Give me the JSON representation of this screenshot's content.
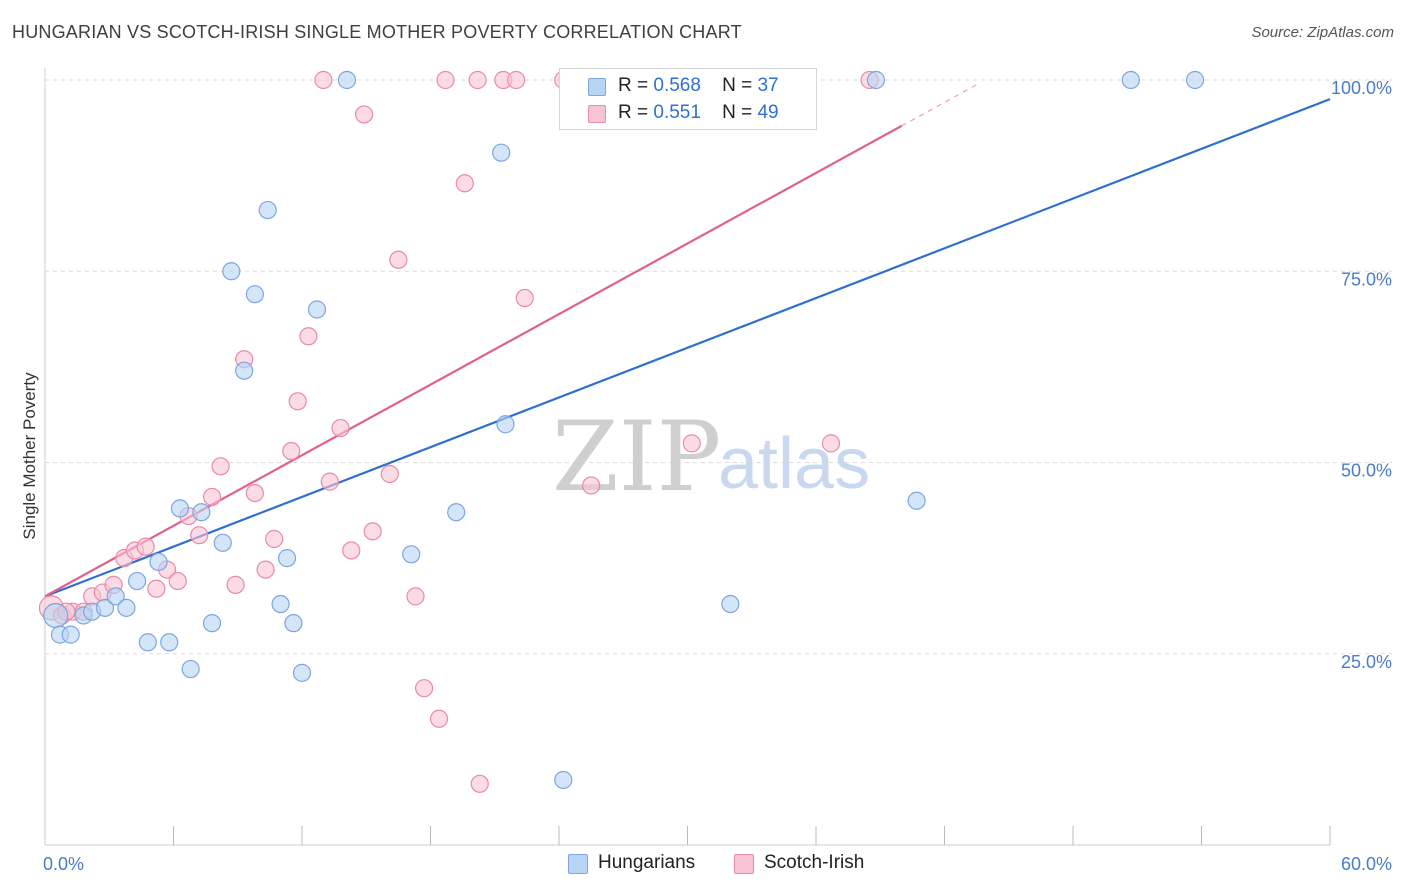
{
  "title": "HUNGARIAN VS SCOTCH-IRISH SINGLE MOTHER POVERTY CORRELATION CHART",
  "source": "Source: ZipAtlas.com",
  "watermark": {
    "zip": "ZIP",
    "atlas": "atlas"
  },
  "legend": {
    "rows": [
      {
        "r_label": "R =",
        "r_value": "0.568",
        "n_label": "N =",
        "n_value": "37"
      },
      {
        "r_label": "R =",
        "r_value": "0.551",
        "n_label": "N =",
        "n_value": "49"
      }
    ]
  },
  "bottom_legend": {
    "hungarians": "Hungarians",
    "scotch_irish": "Scotch-Irish"
  },
  "colors": {
    "blue_fill": "#b9d3f4",
    "blue_stroke": "#7aa6e0",
    "blue_line": "#2f6fcf",
    "pink_fill": "#f8c3d3",
    "pink_stroke": "#e98aa8",
    "pink_line": "#e0608a",
    "grid": "#dddddd",
    "tick_label": "#4a7bc8"
  },
  "chart_data": {
    "type": "scatter",
    "title": "HUNGARIAN VS SCOTCH-IRISH SINGLE MOTHER POVERTY CORRELATION CHART",
    "xlabel": "",
    "ylabel": "Single Mother Poverty",
    "xlim": [
      0,
      60
    ],
    "ylim": [
      0,
      100
    ],
    "x_tick_labels": [
      "0.0%",
      "60.0%"
    ],
    "y_ticks": [
      25,
      50,
      75,
      100
    ],
    "y_tick_labels": [
      "25.0%",
      "50.0%",
      "75.0%",
      "100.0%"
    ],
    "series": [
      {
        "name": "Hungarians",
        "R": 0.568,
        "N": 37,
        "trend": {
          "x": [
            0,
            60
          ],
          "y": [
            32.5,
            97.5
          ]
        },
        "points": [
          {
            "x": 0.5,
            "y": 30.0
          },
          {
            "x": 0.7,
            "y": 27.5
          },
          {
            "x": 1.2,
            "y": 27.5
          },
          {
            "x": 1.8,
            "y": 30.0
          },
          {
            "x": 2.2,
            "y": 30.5
          },
          {
            "x": 2.8,
            "y": 31.0
          },
          {
            "x": 3.3,
            "y": 32.5
          },
          {
            "x": 3.8,
            "y": 31.0
          },
          {
            "x": 4.3,
            "y": 34.5
          },
          {
            "x": 4.8,
            "y": 26.5
          },
          {
            "x": 5.3,
            "y": 37.0
          },
          {
            "x": 5.8,
            "y": 26.5
          },
          {
            "x": 6.3,
            "y": 44.0
          },
          {
            "x": 6.8,
            "y": 23.0
          },
          {
            "x": 7.3,
            "y": 43.5
          },
          {
            "x": 7.8,
            "y": 29.0
          },
          {
            "x": 8.3,
            "y": 39.5
          },
          {
            "x": 8.7,
            "y": 75.0
          },
          {
            "x": 9.3,
            "y": 62.0
          },
          {
            "x": 9.8,
            "y": 72.0
          },
          {
            "x": 10.4,
            "y": 83.0
          },
          {
            "x": 11.0,
            "y": 31.5
          },
          {
            "x": 11.3,
            "y": 37.5
          },
          {
            "x": 11.6,
            "y": 29.0
          },
          {
            "x": 12.0,
            "y": 22.5
          },
          {
            "x": 12.7,
            "y": 70.0
          },
          {
            "x": 14.1,
            "y": 100.0
          },
          {
            "x": 17.1,
            "y": 38.0
          },
          {
            "x": 19.2,
            "y": 43.5
          },
          {
            "x": 21.3,
            "y": 90.5
          },
          {
            "x": 21.5,
            "y": 55.0
          },
          {
            "x": 24.2,
            "y": 8.5
          },
          {
            "x": 32.0,
            "y": 31.5
          },
          {
            "x": 38.8,
            "y": 100.0
          },
          {
            "x": 40.7,
            "y": 45.0
          },
          {
            "x": 50.7,
            "y": 100.0
          },
          {
            "x": 53.7,
            "y": 100.0
          }
        ]
      },
      {
        "name": "Scotch-Irish",
        "R": 0.551,
        "N": 49,
        "trend": {
          "x": [
            0,
            40
          ],
          "y": [
            32.5,
            94.0
          ]
        },
        "points": [
          {
            "x": 0.3,
            "y": 31.0
          },
          {
            "x": 0.8,
            "y": 30.0
          },
          {
            "x": 1.3,
            "y": 30.5
          },
          {
            "x": 1.8,
            "y": 30.5
          },
          {
            "x": 2.2,
            "y": 32.5
          },
          {
            "x": 2.7,
            "y": 33.0
          },
          {
            "x": 3.2,
            "y": 34.0
          },
          {
            "x": 3.7,
            "y": 37.5
          },
          {
            "x": 4.2,
            "y": 38.5
          },
          {
            "x": 4.7,
            "y": 39.0
          },
          {
            "x": 5.2,
            "y": 33.5
          },
          {
            "x": 5.7,
            "y": 36.0
          },
          {
            "x": 6.2,
            "y": 34.5
          },
          {
            "x": 6.7,
            "y": 43.0
          },
          {
            "x": 7.2,
            "y": 40.5
          },
          {
            "x": 7.8,
            "y": 45.5
          },
          {
            "x": 8.2,
            "y": 49.5
          },
          {
            "x": 8.9,
            "y": 34.0
          },
          {
            "x": 9.3,
            "y": 63.5
          },
          {
            "x": 9.8,
            "y": 46.0
          },
          {
            "x": 10.3,
            "y": 36.0
          },
          {
            "x": 10.7,
            "y": 40.0
          },
          {
            "x": 11.5,
            "y": 51.5
          },
          {
            "x": 11.8,
            "y": 58.0
          },
          {
            "x": 12.3,
            "y": 66.5
          },
          {
            "x": 13.0,
            "y": 100.0
          },
          {
            "x": 13.3,
            "y": 47.5
          },
          {
            "x": 13.8,
            "y": 54.5
          },
          {
            "x": 14.3,
            "y": 38.5
          },
          {
            "x": 14.9,
            "y": 95.5
          },
          {
            "x": 15.3,
            "y": 41.0
          },
          {
            "x": 16.1,
            "y": 48.5
          },
          {
            "x": 16.5,
            "y": 76.5
          },
          {
            "x": 17.3,
            "y": 32.5
          },
          {
            "x": 17.7,
            "y": 20.5
          },
          {
            "x": 18.4,
            "y": 16.5
          },
          {
            "x": 18.7,
            "y": 100.0
          },
          {
            "x": 19.6,
            "y": 86.5
          },
          {
            "x": 20.2,
            "y": 100.0
          },
          {
            "x": 20.3,
            "y": 8.0
          },
          {
            "x": 21.4,
            "y": 100.0
          },
          {
            "x": 22.0,
            "y": 100.0
          },
          {
            "x": 22.4,
            "y": 71.5
          },
          {
            "x": 24.2,
            "y": 100.0
          },
          {
            "x": 25.5,
            "y": 47.0
          },
          {
            "x": 30.2,
            "y": 52.5
          },
          {
            "x": 36.7,
            "y": 52.5
          },
          {
            "x": 38.5,
            "y": 100.0
          },
          {
            "x": 1.0,
            "y": 30.5
          }
        ]
      }
    ]
  }
}
